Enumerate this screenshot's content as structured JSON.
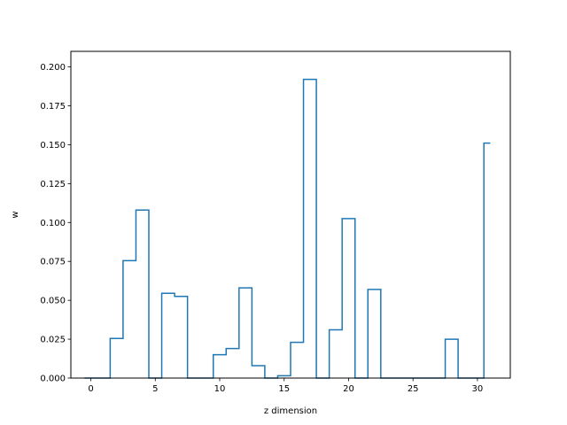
{
  "chart_data": {
    "type": "line",
    "style": "step",
    "title": "",
    "xlabel": "z dimension",
    "ylabel": "w",
    "xlim": [
      -1.55,
      32.55
    ],
    "ylim": [
      0.0,
      0.21
    ],
    "xticks": [
      0,
      5,
      10,
      15,
      20,
      25,
      30
    ],
    "yticks": [
      0.0,
      0.025,
      0.05,
      0.075,
      0.1,
      0.125,
      0.15,
      0.175,
      0.2
    ],
    "ytick_labels": [
      "0.000",
      "0.025",
      "0.050",
      "0.075",
      "0.100",
      "0.125",
      "0.150",
      "0.175",
      "0.200"
    ],
    "grid": false,
    "legend": "none",
    "series": [
      {
        "color": "#1f77b4",
        "x": [
          0,
          1,
          2,
          3,
          4,
          5,
          6,
          7,
          8,
          9,
          10,
          11,
          12,
          13,
          14,
          15,
          16,
          17,
          18,
          19,
          20,
          21,
          22,
          23,
          24,
          25,
          26,
          27,
          28,
          29,
          30,
          31
        ],
        "y": [
          0.0,
          0.0,
          0.0255,
          0.0755,
          0.108,
          0.0,
          0.0545,
          0.0525,
          0.0,
          0.0,
          0.015,
          0.019,
          0.058,
          0.008,
          0.0,
          0.0015,
          0.023,
          0.192,
          0.0,
          0.031,
          0.1025,
          0.0,
          0.057,
          0.0,
          0.0,
          0.0,
          0.0,
          0.0,
          0.025,
          0.0,
          0.0,
          0.151
        ]
      }
    ]
  }
}
